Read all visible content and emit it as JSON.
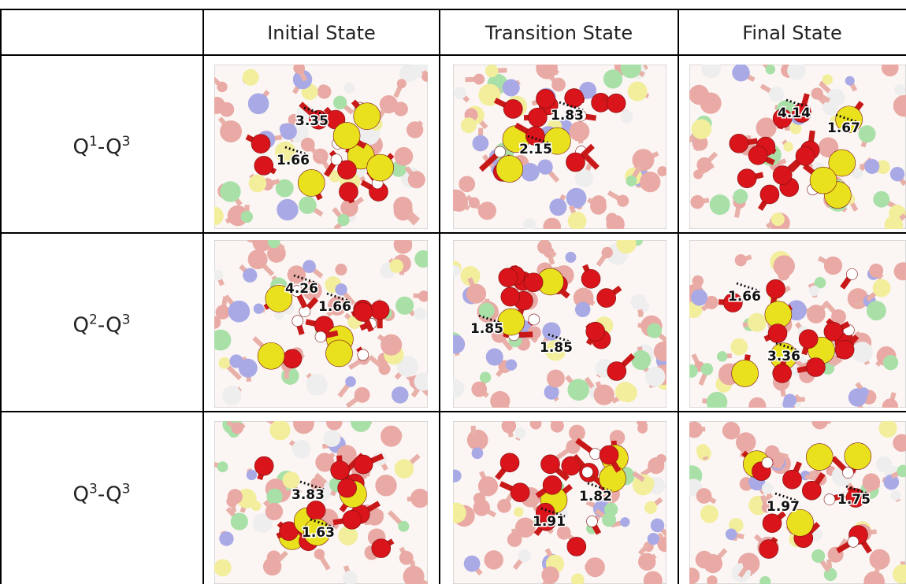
{
  "table": {
    "columns": [
      "Initial State",
      "Transition State",
      "Final State"
    ],
    "rows": [
      {
        "label": [
          "Q",
          "1",
          "-Q",
          "3"
        ],
        "cells": [
          [
            "3.35",
            "1.66"
          ],
          [
            "1.83",
            "2.15"
          ],
          [
            "4.14",
            "1.67"
          ]
        ]
      },
      {
        "label": [
          "Q",
          "2",
          "-Q",
          "3"
        ],
        "cells": [
          [
            "4.26",
            "1.66"
          ],
          [
            "1.85",
            "1.85"
          ],
          [
            "1.66",
            "3.36"
          ]
        ]
      },
      {
        "label": [
          "Q",
          "3",
          "-Q",
          "3"
        ],
        "cells": [
          [
            "3.83",
            "1.63"
          ],
          [
            "1.82",
            "1.91"
          ],
          [
            "1.97",
            "1.75"
          ]
        ]
      }
    ]
  }
}
